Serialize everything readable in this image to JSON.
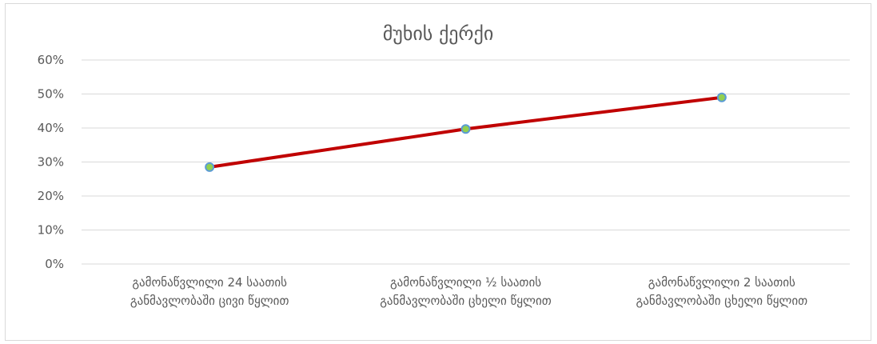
{
  "chart_data": {
    "type": "line",
    "title": "მუხის ქერქი",
    "xlabel": "",
    "ylabel": "",
    "categories": [
      [
        "გამონაწვლილი 24 საათის",
        "განმავლობაში ცივი წყლით"
      ],
      [
        "გამონაწვლილი ½ საათის",
        "განმავლობაში ცხელი წყლით"
      ],
      [
        "გამონაწვლილი 2 საათის",
        "განმავლობაში ცხელი წყლით"
      ]
    ],
    "series": [
      {
        "values": [
          0.285,
          0.397,
          0.49
        ]
      }
    ],
    "ylim": [
      0,
      0.6
    ],
    "yticks": [
      0,
      0.1,
      0.2,
      0.3,
      0.4,
      0.5,
      0.6
    ],
    "ytick_labels": [
      "0%",
      "10%",
      "20%",
      "30%",
      "40%",
      "50%",
      "60%"
    ],
    "grid": true,
    "legend": "none",
    "colors": {
      "line": "#c00000",
      "marker_fill": "#92d050",
      "marker_edge": "#5b9bd5",
      "grid": "#d9d9d9",
      "text": "#595959"
    }
  }
}
